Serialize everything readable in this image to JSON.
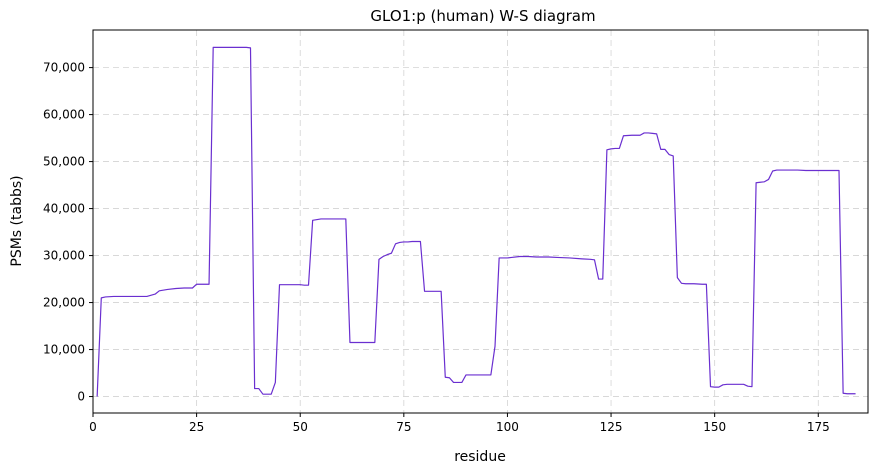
{
  "chart_data": {
    "type": "line",
    "title": "GLO1:p (human) W-S diagram",
    "xlabel": "residue",
    "ylabel": "PSMs (tabbs)",
    "xlim": [
      0,
      187
    ],
    "ylim": [
      -3500,
      78000
    ],
    "xticks": [
      0,
      25,
      50,
      75,
      100,
      125,
      150,
      175
    ],
    "xtick_labels": [
      "0",
      "25",
      "50",
      "75",
      "100",
      "125",
      "150",
      "175"
    ],
    "yticks": [
      0,
      10000,
      20000,
      30000,
      40000,
      50000,
      60000,
      70000
    ],
    "ytick_labels": [
      "0",
      "10,000",
      "20,000",
      "30,000",
      "40,000",
      "50,000",
      "60,000",
      "70,000"
    ],
    "grid": true,
    "line_color": "#6a2fd0",
    "series": [
      {
        "x": [
          1,
          2,
          3,
          5,
          8,
          10,
          13,
          15,
          16,
          18,
          20,
          22,
          24,
          25,
          26,
          27,
          28,
          29,
          30,
          32,
          35,
          37,
          38,
          39,
          40,
          41,
          42,
          43,
          44,
          45,
          46,
          47,
          50,
          51,
          52,
          53,
          55,
          58,
          60,
          61,
          62,
          65,
          66,
          67,
          68,
          69,
          70,
          71,
          72,
          73,
          74,
          75,
          76,
          77,
          78,
          79,
          80,
          81,
          82,
          83,
          84,
          85,
          86,
          87,
          88,
          89,
          90,
          92,
          95,
          96,
          97,
          98,
          100,
          101,
          103,
          105,
          107,
          110,
          112,
          115,
          118,
          120,
          121,
          122,
          123,
          124,
          125,
          126,
          127,
          128,
          130,
          131,
          132,
          133,
          134,
          135,
          136,
          137,
          138,
          139,
          140,
          141,
          142,
          143,
          145,
          147,
          148,
          149,
          150,
          151,
          152,
          153,
          155,
          157,
          158,
          159,
          160,
          161,
          162,
          163,
          164,
          165,
          167,
          170,
          172,
          175,
          178,
          179,
          180,
          181,
          182,
          183,
          184
        ],
        "y": [
          0,
          21000,
          21200,
          21300,
          21300,
          21300,
          21300,
          21800,
          22500,
          22800,
          23000,
          23100,
          23100,
          23900,
          23900,
          23900,
          23900,
          74300,
          74300,
          74300,
          74300,
          74300,
          74200,
          1700,
          1700,
          500,
          500,
          500,
          3000,
          23800,
          23800,
          23800,
          23800,
          23700,
          23700,
          37500,
          37800,
          37800,
          37800,
          37800,
          11500,
          11500,
          11500,
          11500,
          11500,
          29200,
          29800,
          30200,
          30500,
          32500,
          32800,
          32900,
          32900,
          33000,
          33000,
          33000,
          22400,
          22400,
          22400,
          22400,
          22400,
          4100,
          4000,
          3000,
          3000,
          3000,
          4600,
          4600,
          4600,
          4600,
          10700,
          29500,
          29500,
          29600,
          29800,
          29800,
          29700,
          29700,
          29600,
          29500,
          29300,
          29200,
          29100,
          25000,
          25000,
          52500,
          52700,
          52800,
          52800,
          55500,
          55600,
          55600,
          55600,
          56100,
          56100,
          56000,
          55900,
          52600,
          52600,
          51500,
          51200,
          25300,
          24100,
          24000,
          24000,
          23900,
          23900,
          2100,
          2000,
          2000,
          2500,
          2600,
          2600,
          2600,
          2200,
          2100,
          45500,
          45600,
          45700,
          46200,
          48000,
          48200,
          48200,
          48200,
          48100,
          48100,
          48100,
          48100,
          48100,
          700,
          600,
          600,
          600
        ]
      }
    ]
  }
}
